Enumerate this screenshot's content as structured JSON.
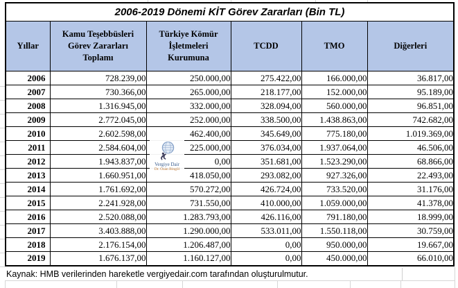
{
  "table": {
    "title": "2006-2019 Dönemi KİT Görev Zararları (Bin TL)",
    "columns": [
      {
        "label": "Yıllar"
      },
      {
        "label": "Kamu Teşebbüsleri\nGörev Zararları\nToplamı"
      },
      {
        "label": "Türkiye Kömür\nİşletmeleri\nKurumuna"
      },
      {
        "label": "TCDD"
      },
      {
        "label": "TMO"
      },
      {
        "label": "Diğerleri"
      }
    ],
    "rows": [
      {
        "year": "2006",
        "values": [
          "728.239,00",
          "250.000,00",
          "275.422,00",
          "166.000,00",
          "36.817,00"
        ]
      },
      {
        "year": "2007",
        "values": [
          "730.366,00",
          "265.000,00",
          "218.177,00",
          "152.000,00",
          "95.189,00"
        ]
      },
      {
        "year": "2008",
        "values": [
          "1.316.945,00",
          "332.000,00",
          "328.094,00",
          "560.000,00",
          "96.851,00"
        ]
      },
      {
        "year": "2009",
        "values": [
          "2.772.045,00",
          "252.000,00",
          "338.500,00",
          "1.438.863,00",
          "742.682,00"
        ]
      },
      {
        "year": "2010",
        "values": [
          "2.602.598,00",
          "462.400,00",
          "345.649,00",
          "775.180,00",
          "1.019.369,00"
        ]
      },
      {
        "year": "2011",
        "values": [
          "2.584.604,00",
          "225.000,00",
          "376.034,00",
          "1.937.064,00",
          "46.506,00"
        ]
      },
      {
        "year": "2012",
        "values": [
          "1.943.837,00",
          "0,00",
          "351.681,00",
          "1.523.290,00",
          "68.866,00"
        ]
      },
      {
        "year": "2013",
        "values": [
          "1.660.951,00",
          "418.050,00",
          "293.082,00",
          "927.326,00",
          "22.493,00"
        ]
      },
      {
        "year": "2014",
        "values": [
          "1.761.692,00",
          "570.272,00",
          "426.724,00",
          "733.520,00",
          "31.176,00"
        ]
      },
      {
        "year": "2015",
        "values": [
          "2.241.928,00",
          "731.550,00",
          "410.000,00",
          "1.059.000,00",
          "41.378,00"
        ]
      },
      {
        "year": "2016",
        "values": [
          "2.520.088,00",
          "1.283.793,00",
          "426.116,00",
          "791.180,00",
          "18.999,00"
        ]
      },
      {
        "year": "2017",
        "values": [
          "3.403.888,00",
          "1.290.000,00",
          "533.011,00",
          "1.550.118,00",
          "30.759,00"
        ]
      },
      {
        "year": "2018",
        "values": [
          "2.176.154,00",
          "1.206.487,00",
          "0,00",
          "950.000,00",
          "19.667,00"
        ]
      },
      {
        "year": "2019",
        "values": [
          "1.676.137,00",
          "1.160.127,00",
          "0,00",
          "450.000,00",
          "66.010,00"
        ]
      }
    ]
  },
  "footer": {
    "text": "Kaynak: HMB verilerinden hareketle vergiyedair.com tarafından oluşturulmutur."
  },
  "watermark": {
    "line1": "Vergiye Dair",
    "line2": "Dr. Ozan Bingöl"
  },
  "colors": {
    "header_bg": "#b4c6e7",
    "border": "#000000",
    "grid_faint": "#d6d6d6",
    "watermark_blue": "#35598c",
    "watermark_orange": "#b86f28"
  }
}
